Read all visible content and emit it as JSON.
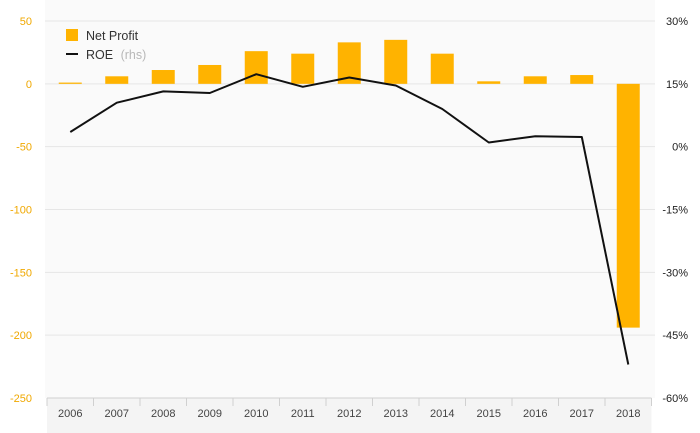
{
  "chart_data": {
    "type": "bar",
    "categories": [
      "2006",
      "2007",
      "2008",
      "2009",
      "2010",
      "2011",
      "2012",
      "2013",
      "2014",
      "2015",
      "2016",
      "2017",
      "2018"
    ],
    "series": [
      {
        "name": "Net Profit",
        "type": "bar",
        "axis": "left",
        "color": "#ffb300",
        "values": [
          1,
          6,
          11,
          15,
          26,
          24,
          33,
          35,
          24,
          2,
          6,
          7,
          -194
        ]
      },
      {
        "name": "ROE",
        "type": "line",
        "axis": "right",
        "color": "#111111",
        "values": [
          3.5,
          10.5,
          13.2,
          12.8,
          17.3,
          14.3,
          16.5,
          14.6,
          9.0,
          1.0,
          2.5,
          2.3,
          -52.0
        ]
      }
    ],
    "legend": {
      "items": [
        "Net Profit",
        "ROE"
      ],
      "roe_suffix": "(rhs)",
      "position": "top-left"
    },
    "y_left": {
      "min": -250,
      "max": 50,
      "ticks": [
        "50",
        "0",
        "-50",
        "-100",
        "-150",
        "-200",
        "-250"
      ],
      "color": "#f0a800"
    },
    "y_right": {
      "min": -60,
      "max": 30,
      "ticks": [
        "30%",
        "15%",
        "0%",
        "-15%",
        "-30%",
        "-45%",
        "-60%"
      ]
    },
    "grid": true,
    "title": "",
    "xlabel": "",
    "ylabel": ""
  }
}
